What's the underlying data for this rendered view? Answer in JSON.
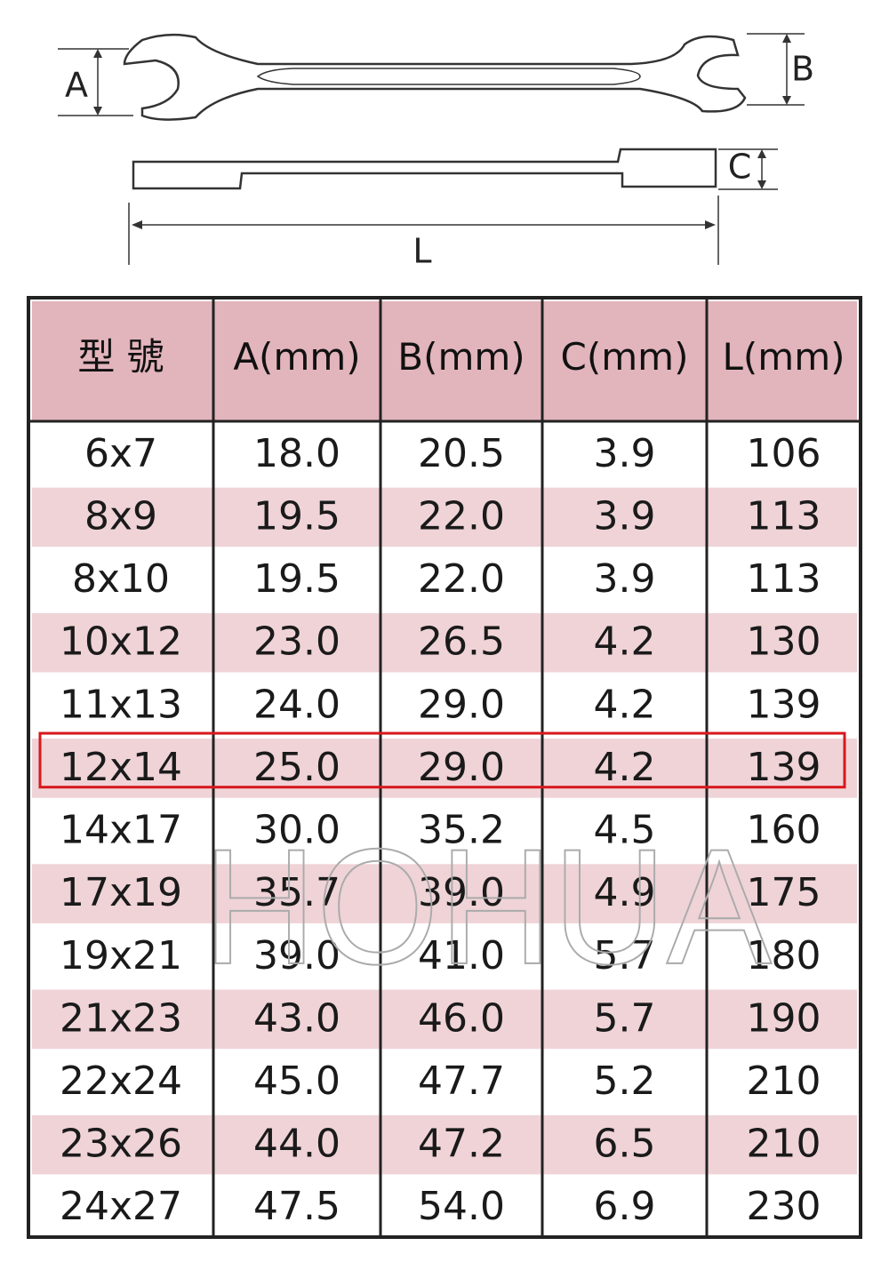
{
  "diagram": {
    "labels": {
      "a": "A",
      "b": "B",
      "c": "C",
      "l": "L"
    }
  },
  "table": {
    "header": [
      "型  號",
      "A(mm)",
      "B(mm)",
      "C(mm)",
      "L(mm)"
    ],
    "rows": [
      [
        "6x7",
        "18.0",
        "20.5",
        "3.9",
        "106"
      ],
      [
        "8x9",
        "19.5",
        "22.0",
        "3.9",
        "113"
      ],
      [
        "8x10",
        "19.5",
        "22.0",
        "3.9",
        "113"
      ],
      [
        "10x12",
        "23.0",
        "26.5",
        "4.2",
        "130"
      ],
      [
        "11x13",
        "24.0",
        "29.0",
        "4.2",
        "139"
      ],
      [
        "12x14",
        "25.0",
        "29.0",
        "4.2",
        "139"
      ],
      [
        "14x17",
        "30.0",
        "35.2",
        "4.5",
        "160"
      ],
      [
        "17x19",
        "35.7",
        "39.0",
        "4.9",
        "175"
      ],
      [
        "19x21",
        "39.0",
        "41.0",
        "5.7",
        "180"
      ],
      [
        "21x23",
        "43.0",
        "46.0",
        "5.7",
        "190"
      ],
      [
        "22x24",
        "45.0",
        "47.7",
        "5.2",
        "210"
      ],
      [
        "23x26",
        "44.0",
        "47.2",
        "6.5",
        "210"
      ],
      [
        "24x27",
        "47.5",
        "54.0",
        "6.9",
        "230"
      ]
    ]
  },
  "watermark": "HOHUA"
}
